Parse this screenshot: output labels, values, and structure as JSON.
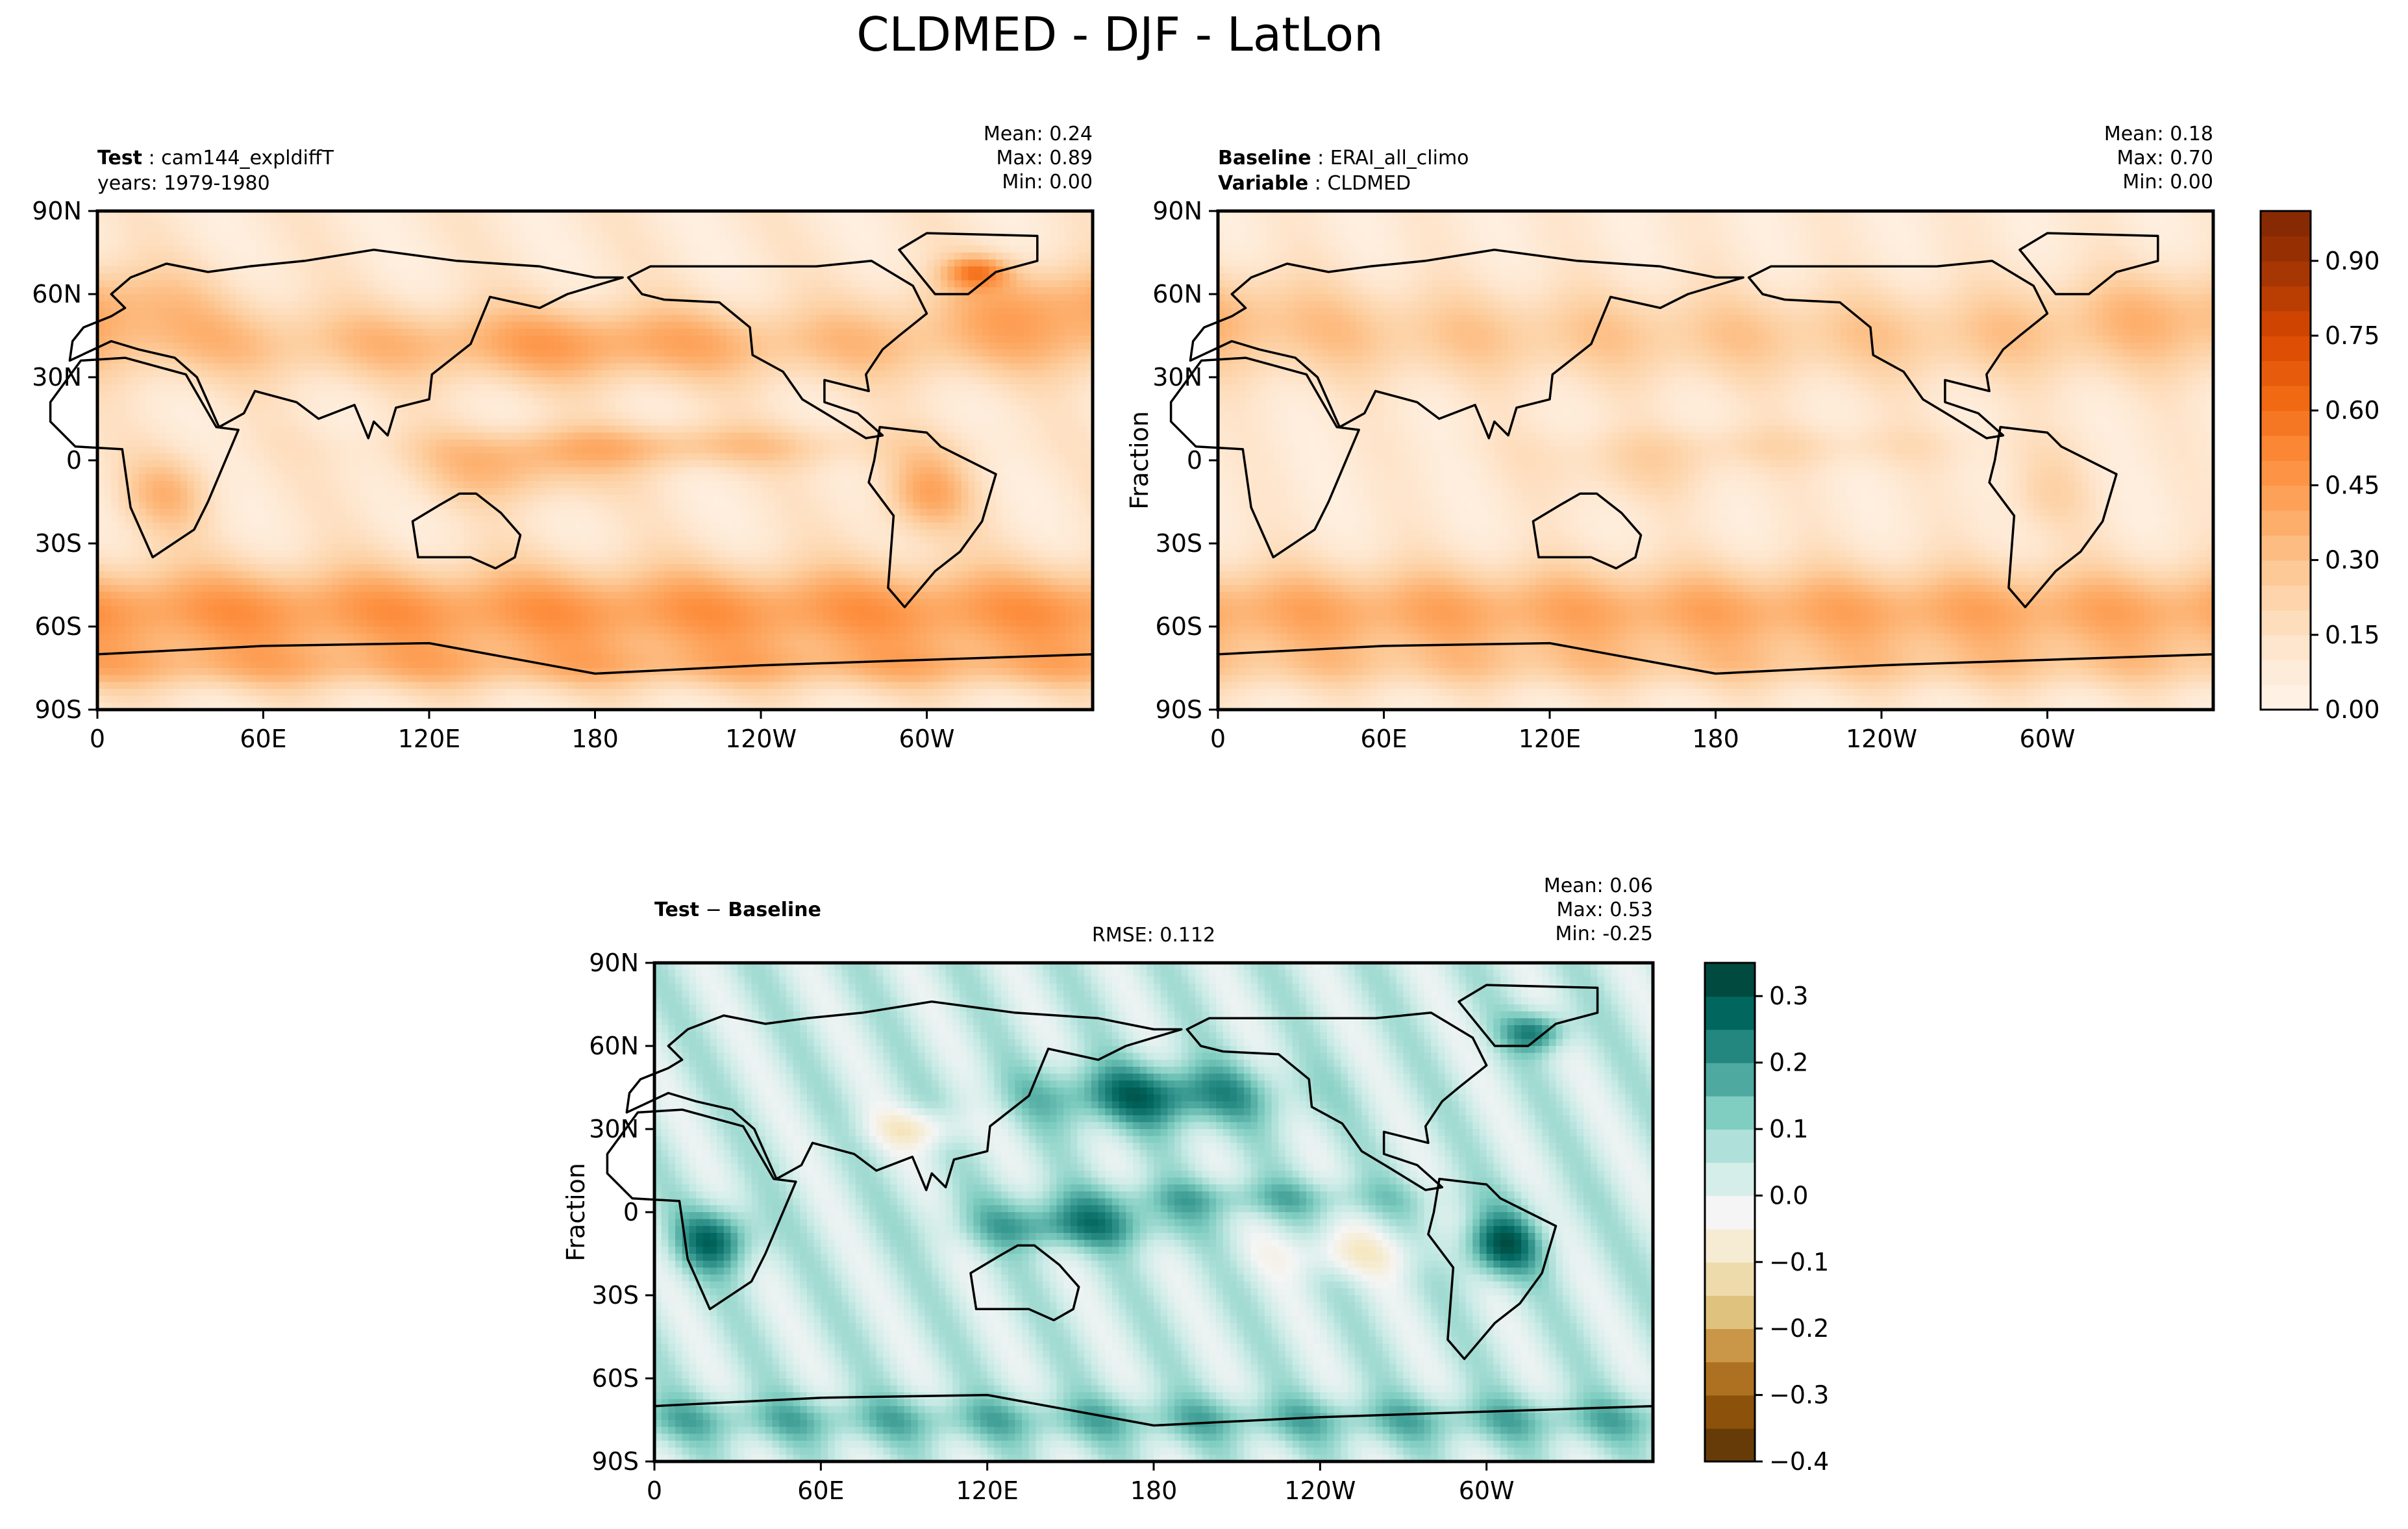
{
  "figure": {
    "title": "CLDMED - DJF - LatLon"
  },
  "chart_data": [
    {
      "type": "heatmap",
      "panel": "test",
      "label_bold": "Test",
      "label_value": "cam144_expldiffT",
      "sub_label": "years: 1979-1980",
      "ylabel": "",
      "stats": [
        "Mean:  0.24",
        "Max:  0.89",
        "Min:  0.00"
      ],
      "xticks": [
        "0",
        "60E",
        "120E",
        "180",
        "120W",
        "60W"
      ],
      "yticks": [
        "90N",
        "60N",
        "30N",
        "0",
        "30S",
        "60S",
        "90S"
      ],
      "xlim": [
        0,
        360
      ],
      "ylim": [
        -90,
        90
      ],
      "colormap": "Oranges",
      "field_range": [
        0,
        0.89
      ]
    },
    {
      "type": "heatmap",
      "panel": "baseline",
      "label_bold": "Baseline",
      "label_value": "ERAI_all_climo",
      "sub_label_bold": "Variable",
      "sub_label_value": "CLDMED",
      "ylabel": "Fraction",
      "stats": [
        "Mean:  0.18",
        "Max:  0.70",
        "Min:  0.00"
      ],
      "xticks": [
        "0",
        "60E",
        "120E",
        "180",
        "120W",
        "60W"
      ],
      "yticks": [
        "90N",
        "60N",
        "30N",
        "0",
        "30S",
        "60S",
        "90S"
      ],
      "xlim": [
        0,
        360
      ],
      "ylim": [
        -90,
        90
      ],
      "colormap": "Oranges",
      "field_range": [
        0,
        0.7
      ],
      "colorbar": {
        "ticks": [
          "0.00",
          "0.15",
          "0.30",
          "0.45",
          "0.60",
          "0.75",
          "0.90"
        ],
        "tick_values": [
          0,
          0.15,
          0.3,
          0.45,
          0.6,
          0.75,
          0.9
        ],
        "range": [
          0,
          1.0
        ],
        "levels": 20,
        "colors": [
          "#fff5eb",
          "#fee6ce",
          "#fdd0a2",
          "#fdae6b",
          "#fd8d3c",
          "#f16913",
          "#d94801",
          "#a63603",
          "#7f2704"
        ]
      }
    },
    {
      "type": "heatmap",
      "panel": "difference",
      "label_bold": "Test",
      "label_minus": " − ",
      "label_bold2": "Baseline",
      "rmse": "RMSE: 0.112",
      "ylabel": "Fraction",
      "stats": [
        "Mean:  0.06",
        "Max:  0.53",
        "Min: -0.25"
      ],
      "xticks": [
        "0",
        "60E",
        "120E",
        "180",
        "120W",
        "60W"
      ],
      "yticks": [
        "90N",
        "60N",
        "30N",
        "0",
        "30S",
        "60S",
        "90S"
      ],
      "xlim": [
        0,
        360
      ],
      "ylim": [
        -90,
        90
      ],
      "colormap": "BrBG",
      "field_range": [
        -0.25,
        0.53
      ],
      "colorbar": {
        "ticks": [
          "0.3",
          "0.2",
          "0.1",
          "0.0",
          "−0.1",
          "−0.2",
          "−0.3",
          "−0.4"
        ],
        "tick_values": [
          0.3,
          0.2,
          0.1,
          0.0,
          -0.1,
          -0.2,
          -0.3,
          -0.4
        ],
        "range": [
          -0.4,
          0.35
        ],
        "levels": 15,
        "colors": [
          "#543005",
          "#8c510a",
          "#bf812d",
          "#dfc27d",
          "#f6e8c3",
          "#f5f5f5",
          "#c7eae5",
          "#80cdc1",
          "#35978f",
          "#01665e",
          "#003c30"
        ]
      }
    }
  ],
  "colors": {
    "axis": "#000000",
    "coast": "#000000",
    "background": "#ffffff"
  }
}
